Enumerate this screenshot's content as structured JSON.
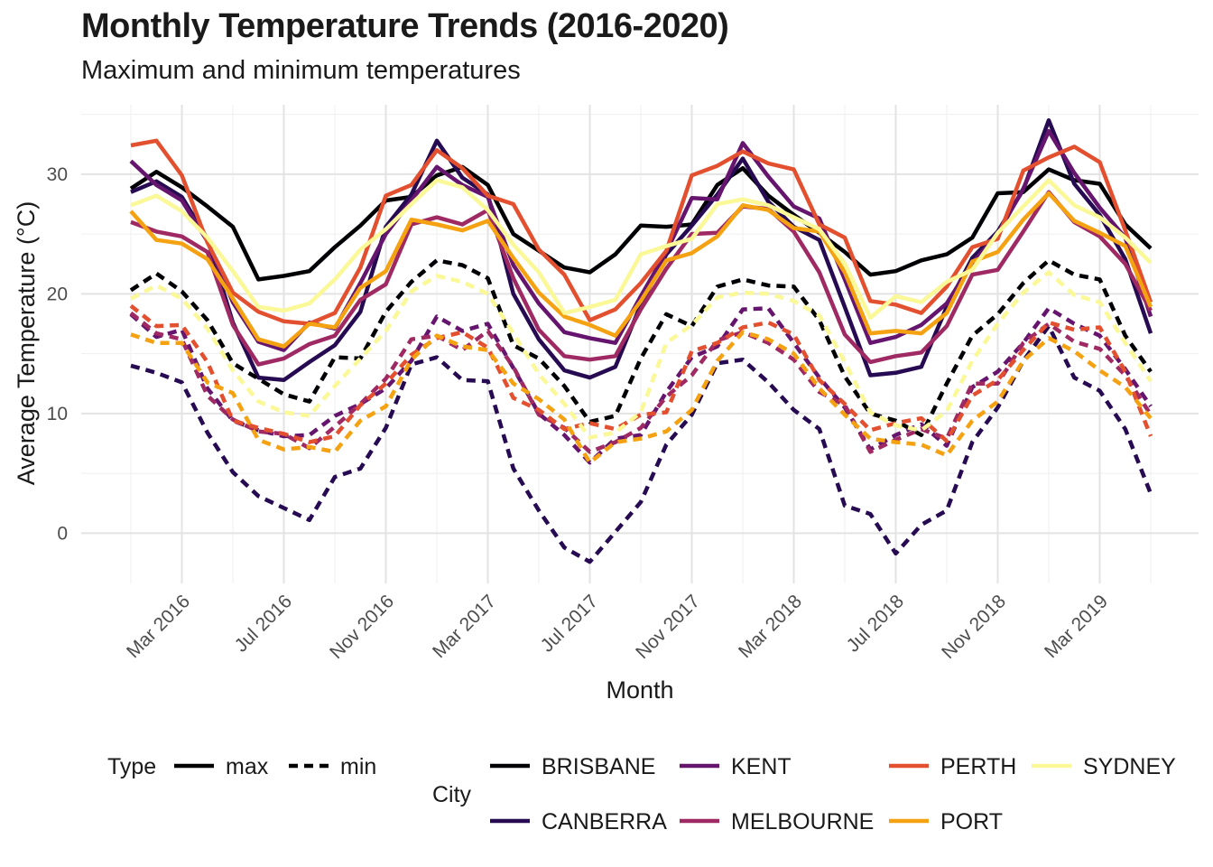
{
  "title": "Monthly Temperature Trends (2016-2020)",
  "subtitle": "Maximum and minimum temperatures",
  "chart_data": {
    "type": "line",
    "title": "Monthly Temperature Trends (2016-2020)",
    "subtitle": "Maximum and minimum temperatures",
    "xlabel": "Month",
    "ylabel": "Average Temperature (°C)",
    "ylim": [
      -4.2,
      35.8
    ],
    "yticks": [
      0,
      10,
      20,
      30
    ],
    "x_months": [
      "2016-01",
      "2016-02",
      "2016-03",
      "2016-04",
      "2016-05",
      "2016-06",
      "2016-07",
      "2016-08",
      "2016-09",
      "2016-10",
      "2016-11",
      "2016-12",
      "2017-01",
      "2017-02",
      "2017-03",
      "2017-04",
      "2017-05",
      "2017-06",
      "2017-07",
      "2017-08",
      "2017-09",
      "2017-10",
      "2017-11",
      "2017-12",
      "2018-01",
      "2018-02",
      "2018-03",
      "2018-04",
      "2018-05",
      "2018-06",
      "2018-07",
      "2018-08",
      "2018-09",
      "2018-10",
      "2018-11",
      "2018-12",
      "2019-01",
      "2019-02",
      "2019-03",
      "2019-04",
      "2019-05"
    ],
    "x_tick_labels": [
      "Mar 2016",
      "Jul 2016",
      "Nov 2016",
      "Mar 2017",
      "Jul 2017",
      "Nov 2017",
      "Mar 2018",
      "Jul 2018",
      "Nov 2018",
      "Mar 2019"
    ],
    "x_tick_months": [
      "2016-03",
      "2016-07",
      "2016-11",
      "2017-03",
      "2017-07",
      "2017-11",
      "2018-03",
      "2018-07",
      "2018-11",
      "2019-03"
    ],
    "grid": true,
    "legend_position": "bottom",
    "legend": {
      "type_title": "Type",
      "type_entries": [
        "max",
        "min"
      ],
      "city_title": "City",
      "city_entries": [
        "BRISBANE",
        "CANBERRA",
        "KENT",
        "MELBOURNE",
        "PERTH",
        "PORT",
        "SYDNEY"
      ]
    },
    "series": [
      {
        "city": "BRISBANE",
        "type": "max",
        "color": "#000004",
        "values": [
          28.8,
          30.2,
          28.9,
          27.3,
          25.6,
          21.2,
          21.5,
          21.9,
          23.9,
          25.7,
          27.8,
          28.1,
          29.9,
          30.6,
          29.1,
          25.0,
          23.6,
          22.2,
          21.8,
          23.3,
          25.7,
          25.6,
          25.8,
          29.1,
          30.5,
          28.2,
          26.6,
          25.1,
          23.5,
          21.6,
          21.9,
          22.8,
          23.3,
          24.7,
          28.4,
          28.5,
          30.4,
          29.5,
          29.2,
          25.8,
          23.8
        ]
      },
      {
        "city": "CANBERRA",
        "type": "max",
        "color": "#270B52",
        "values": [
          28.5,
          29.4,
          28.1,
          24.6,
          17.6,
          13.0,
          12.8,
          14.3,
          15.7,
          18.5,
          25.6,
          28.3,
          32.8,
          29.7,
          28.3,
          20.0,
          16.2,
          13.6,
          13.0,
          13.9,
          19.1,
          23.3,
          25.7,
          28.3,
          31.3,
          27.7,
          25.6,
          24.5,
          18.9,
          13.2,
          13.4,
          13.9,
          18.9,
          23.0,
          25.2,
          28.7,
          34.5,
          29.2,
          26.6,
          22.9,
          16.7
        ]
      },
      {
        "city": "KENT",
        "type": "max",
        "color": "#65156E",
        "values": [
          31.1,
          29.1,
          27.8,
          24.4,
          19.3,
          16.0,
          15.3,
          17.6,
          17.1,
          20.9,
          25.0,
          27.8,
          30.6,
          29.1,
          28.1,
          22.4,
          19.2,
          16.8,
          16.3,
          15.9,
          19.8,
          23.5,
          28.0,
          27.9,
          32.6,
          29.8,
          27.3,
          26.3,
          21.2,
          15.9,
          16.4,
          17.4,
          19.2,
          22.6,
          25.0,
          28.8,
          33.6,
          30.1,
          27.2,
          24.7,
          18.1
        ]
      },
      {
        "city": "MELBOURNE",
        "type": "max",
        "color": "#9F2A63",
        "values": [
          26.0,
          25.2,
          24.8,
          23.5,
          17.4,
          14.1,
          14.6,
          15.8,
          16.5,
          19.5,
          20.8,
          25.8,
          26.4,
          25.8,
          27.0,
          21.3,
          17.0,
          14.8,
          14.5,
          14.8,
          18.7,
          22.1,
          25.0,
          25.1,
          27.3,
          27.1,
          25.2,
          21.8,
          16.6,
          14.3,
          14.8,
          15.1,
          17.3,
          21.6,
          22.0,
          25.2,
          28.5,
          26.0,
          24.8,
          22.5,
          18.6
        ]
      },
      {
        "city": "PERTH",
        "type": "max",
        "color": "#E2502F",
        "values": [
          32.4,
          32.8,
          29.9,
          24.3,
          20.1,
          18.5,
          17.7,
          17.5,
          18.4,
          22.2,
          28.2,
          29.1,
          32.0,
          30.5,
          28.2,
          27.5,
          23.7,
          21.6,
          17.8,
          18.7,
          20.9,
          23.6,
          29.9,
          30.7,
          31.9,
          30.9,
          30.4,
          25.8,
          24.7,
          19.4,
          19.1,
          18.4,
          20.6,
          23.9,
          24.6,
          30.3,
          31.4,
          32.3,
          31.0,
          25.3,
          19.3
        ]
      },
      {
        "city": "PORT",
        "type": "max",
        "color": "#F5A212",
        "values": [
          26.9,
          24.5,
          24.2,
          22.9,
          19.6,
          16.2,
          15.6,
          17.5,
          17.2,
          20.5,
          21.9,
          26.2,
          25.8,
          25.3,
          26.1,
          23.0,
          20.1,
          18.1,
          17.4,
          16.5,
          19.4,
          22.8,
          23.4,
          24.8,
          27.4,
          27.0,
          25.5,
          25.2,
          21.8,
          16.7,
          16.9,
          16.7,
          18.4,
          22.7,
          23.5,
          26.2,
          28.4,
          26.1,
          25.1,
          24.0,
          18.9
        ]
      },
      {
        "city": "SYDNEY",
        "type": "max",
        "color": "#FAF897",
        "values": [
          27.4,
          28.2,
          26.9,
          24.7,
          21.9,
          18.9,
          18.6,
          19.2,
          21.2,
          23.7,
          25.4,
          27.5,
          29.5,
          28.9,
          27.0,
          24.1,
          21.8,
          18.4,
          18.9,
          19.5,
          23.3,
          24.0,
          24.6,
          27.5,
          27.9,
          27.4,
          26.4,
          25.4,
          22.5,
          18.0,
          19.8,
          19.3,
          21.0,
          22.0,
          25.1,
          27.3,
          29.5,
          27.4,
          26.4,
          24.7,
          22.6
        ]
      },
      {
        "city": "BRISBANE",
        "type": "min",
        "color": "#000004",
        "values": [
          20.3,
          21.7,
          20.2,
          17.8,
          14.2,
          12.9,
          11.6,
          11.0,
          14.7,
          14.6,
          18.5,
          21.0,
          22.8,
          22.4,
          21.3,
          15.7,
          14.6,
          12.3,
          9.3,
          9.8,
          14.6,
          18.3,
          17.3,
          20.6,
          21.2,
          20.7,
          20.6,
          17.8,
          13.1,
          10.0,
          9.4,
          8.2,
          12.5,
          16.5,
          18.3,
          20.9,
          22.8,
          21.6,
          21.2,
          16.5,
          13.5
        ]
      },
      {
        "city": "CANBERRA",
        "type": "min",
        "color": "#270B52",
        "values": [
          14.0,
          13.4,
          12.6,
          8.4,
          5.1,
          3.1,
          2.1,
          1.1,
          4.7,
          5.4,
          8.8,
          14.1,
          14.7,
          12.8,
          12.7,
          5.4,
          1.9,
          -1.2,
          -2.4,
          0.1,
          2.6,
          7.4,
          9.9,
          14.2,
          14.5,
          12.6,
          10.3,
          8.7,
          2.3,
          1.6,
          -1.7,
          0.7,
          1.9,
          7.6,
          10.5,
          14.4,
          17.3,
          13.0,
          11.9,
          8.7,
          3.3
        ]
      },
      {
        "city": "KENT",
        "type": "min",
        "color": "#65156E",
        "values": [
          18.3,
          16.4,
          17.0,
          12.1,
          9.4,
          8.6,
          8.1,
          8.2,
          9.8,
          10.8,
          12.1,
          14.4,
          18.1,
          16.9,
          17.5,
          13.8,
          10.0,
          8.2,
          5.9,
          7.9,
          8.2,
          11.8,
          14.7,
          15.6,
          18.7,
          18.8,
          15.9,
          13.0,
          10.5,
          7.0,
          8.2,
          9.1,
          7.3,
          12.2,
          13.5,
          15.9,
          18.8,
          17.5,
          16.5,
          13.7,
          10.6
        ]
      },
      {
        "city": "MELBOURNE",
        "type": "min",
        "color": "#9F2A63",
        "values": [
          18.4,
          16.7,
          16.2,
          11.5,
          9.5,
          8.5,
          8.3,
          7.1,
          8.9,
          10.8,
          12.9,
          16.2,
          16.5,
          15.3,
          16.9,
          13.9,
          9.9,
          8.8,
          6.8,
          7.6,
          8.8,
          11.4,
          13.2,
          16.1,
          16.8,
          15.9,
          14.5,
          11.8,
          10.7,
          6.8,
          7.8,
          8.7,
          7.9,
          12.5,
          12.5,
          15.9,
          17.5,
          16.0,
          15.4,
          13.2,
          9.9
        ]
      },
      {
        "city": "PERTH",
        "type": "min",
        "color": "#E2502F",
        "values": [
          19.0,
          17.3,
          17.4,
          14.3,
          9.4,
          8.8,
          8.3,
          7.6,
          8.1,
          10.7,
          12.5,
          14.9,
          16.3,
          16.8,
          15.5,
          11.3,
          10.3,
          8.7,
          9.2,
          8.7,
          9.9,
          10.1,
          15.2,
          15.9,
          17.2,
          17.6,
          16.6,
          12.8,
          10.8,
          8.6,
          9.2,
          9.6,
          7.7,
          11.5,
          12.8,
          15.3,
          17.6,
          17.0,
          17.2,
          13.5,
          8.1
        ]
      },
      {
        "city": "PORT",
        "type": "min",
        "color": "#F5A212",
        "values": [
          16.6,
          15.9,
          15.9,
          12.6,
          11.7,
          7.8,
          7.0,
          7.2,
          6.8,
          9.4,
          10.6,
          14.5,
          16.5,
          15.6,
          15.3,
          12.5,
          11.2,
          9.5,
          5.9,
          7.6,
          7.9,
          8.5,
          10.3,
          14.4,
          16.8,
          16.2,
          15.0,
          12.1,
          9.9,
          7.9,
          7.6,
          7.4,
          6.5,
          9.4,
          11.0,
          14.4,
          16.3,
          15.2,
          13.6,
          12.2,
          9.6
        ]
      },
      {
        "city": "SYDNEY",
        "type": "min",
        "color": "#FAF897",
        "values": [
          19.6,
          20.7,
          19.6,
          17.1,
          13.6,
          11.0,
          10.1,
          9.8,
          12.3,
          14.6,
          16.9,
          20.2,
          21.5,
          21.0,
          20.0,
          16.7,
          13.3,
          10.8,
          8.0,
          8.4,
          10.1,
          15.9,
          17.4,
          19.7,
          20.1,
          20.0,
          19.4,
          18.2,
          14.3,
          10.1,
          9.0,
          8.6,
          10.2,
          14.4,
          17.5,
          20.1,
          21.8,
          19.9,
          19.3,
          15.9,
          12.7
        ]
      }
    ]
  }
}
